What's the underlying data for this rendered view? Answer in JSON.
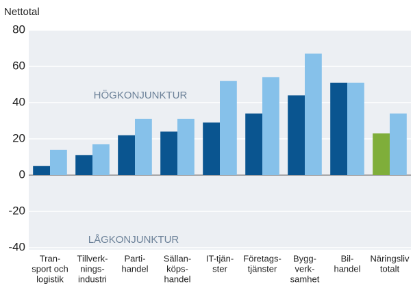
{
  "chart_data": {
    "type": "bar",
    "y_label": "Nettotal",
    "annotations": [
      "HÖGKONJUNKTUR",
      "LÅGKONJUNKTUR"
    ],
    "categories": [
      [
        "Tran-",
        "sport och",
        "logistik"
      ],
      [
        "Tillverk-",
        "nings-",
        "industri"
      ],
      [
        "Parti-",
        "handel"
      ],
      [
        "Sällan-",
        "köps-",
        "handel"
      ],
      [
        "IT-tjän-",
        "ster"
      ],
      [
        "Företags-",
        "tjänster"
      ],
      [
        "Bygg-",
        "verk-",
        "samhet"
      ],
      [
        "Bil-",
        "handel"
      ],
      [
        "Näringsliv",
        "totalt"
      ]
    ],
    "series": [
      {
        "color": "#0a5590",
        "colors": [
          "#0a5590",
          "#0a5590",
          "#0a5590",
          "#0a5590",
          "#0a5590",
          "#0a5590",
          "#0a5590",
          "#0a5590",
          "#7fae3a"
        ],
        "values": [
          5,
          11,
          22,
          24,
          29,
          34,
          44,
          51,
          23
        ]
      },
      {
        "color": "#86c1ea",
        "values": [
          14,
          17,
          31,
          31,
          52,
          54,
          67,
          51,
          34
        ]
      }
    ],
    "ylim": [
      -40,
      80
    ],
    "yticks": [
      -40,
      -20,
      0,
      20,
      40,
      60,
      80
    ],
    "grid": true
  }
}
